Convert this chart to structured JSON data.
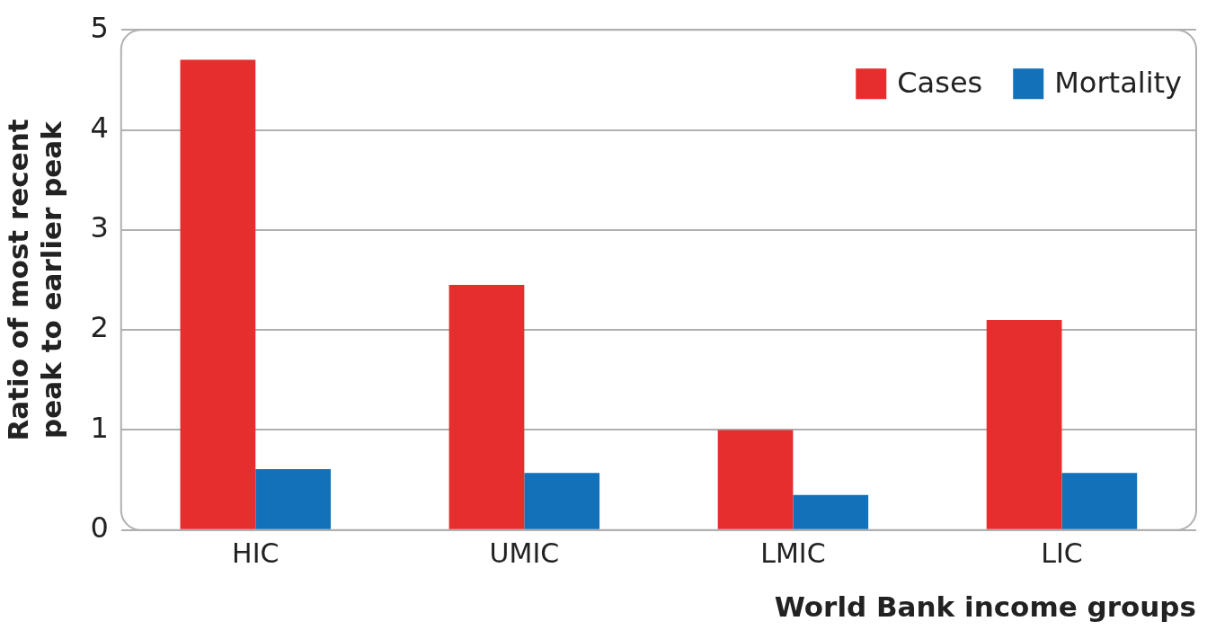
{
  "chart_data": {
    "type": "bar",
    "xlabel": "World Bank income groups",
    "ylabel": "Ratio of most recent\npeak to earlier peak",
    "categories": [
      "HIC",
      "UMIC",
      "LMIC",
      "LIC"
    ],
    "series": [
      {
        "name": "Cases",
        "color": "#e62e2e",
        "values": [
          4.7,
          2.45,
          1.0,
          2.1
        ]
      },
      {
        "name": "Mortality",
        "color": "#1271b9",
        "values": [
          0.61,
          0.57,
          0.35,
          0.57
        ]
      }
    ],
    "ylim": [
      0,
      5
    ],
    "yticks": [
      0,
      1,
      2,
      3,
      4,
      5
    ],
    "grid": "y",
    "legend": "top right"
  }
}
